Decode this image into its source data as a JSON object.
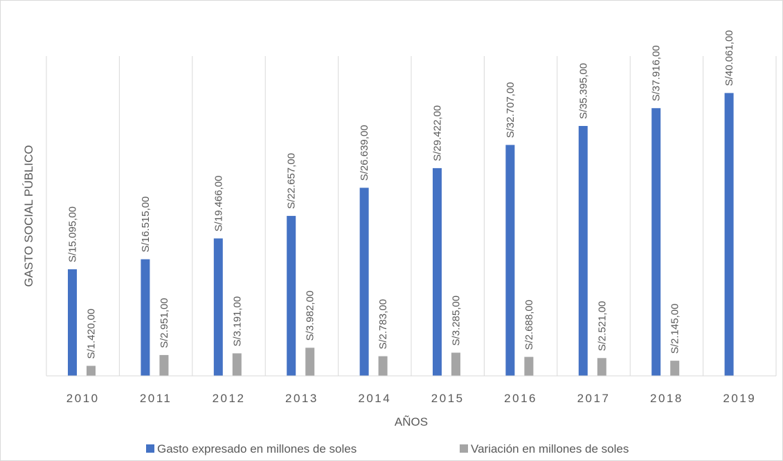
{
  "chart_data": {
    "type": "bar",
    "title": "",
    "xlabel": "AÑOS",
    "ylabel": "GASTO SOCIAL PÚBLICO",
    "categories": [
      "2010",
      "2011",
      "2012",
      "2013",
      "2014",
      "2015",
      "2016",
      "2017",
      "2018",
      "2019"
    ],
    "ylim": [
      0,
      42000
    ],
    "grid": "vertical",
    "legend_position": "bottom",
    "series": [
      {
        "name": "Gasto expresado en millones de soles",
        "color": "#4472c4",
        "values": [
          15095,
          16515,
          19466,
          22657,
          26639,
          29422,
          32707,
          35395,
          37916,
          40061
        ],
        "labels": [
          "S/15.095,00",
          "S/16.515,00",
          "S/19.466,00",
          "S/22.657,00",
          "S/26.639,00",
          "S/29.422,00",
          "S/32.707,00",
          "S/35.395,00",
          "S/37.916,00",
          "S/40.061,00"
        ]
      },
      {
        "name": "Variación en millones de soles",
        "color": "#a5a5a5",
        "values": [
          1420,
          2951,
          3191,
          3982,
          2783,
          3285,
          2688,
          2521,
          2145,
          null
        ],
        "labels": [
          "S/1.420,00",
          "S/2.951,00",
          "S/3.191,00",
          "S/3.982,00",
          "S/2.783,00",
          "S/3.285,00",
          "S/2.688,00",
          "S/2.521,00",
          "S/2.145,00",
          ""
        ]
      }
    ]
  }
}
